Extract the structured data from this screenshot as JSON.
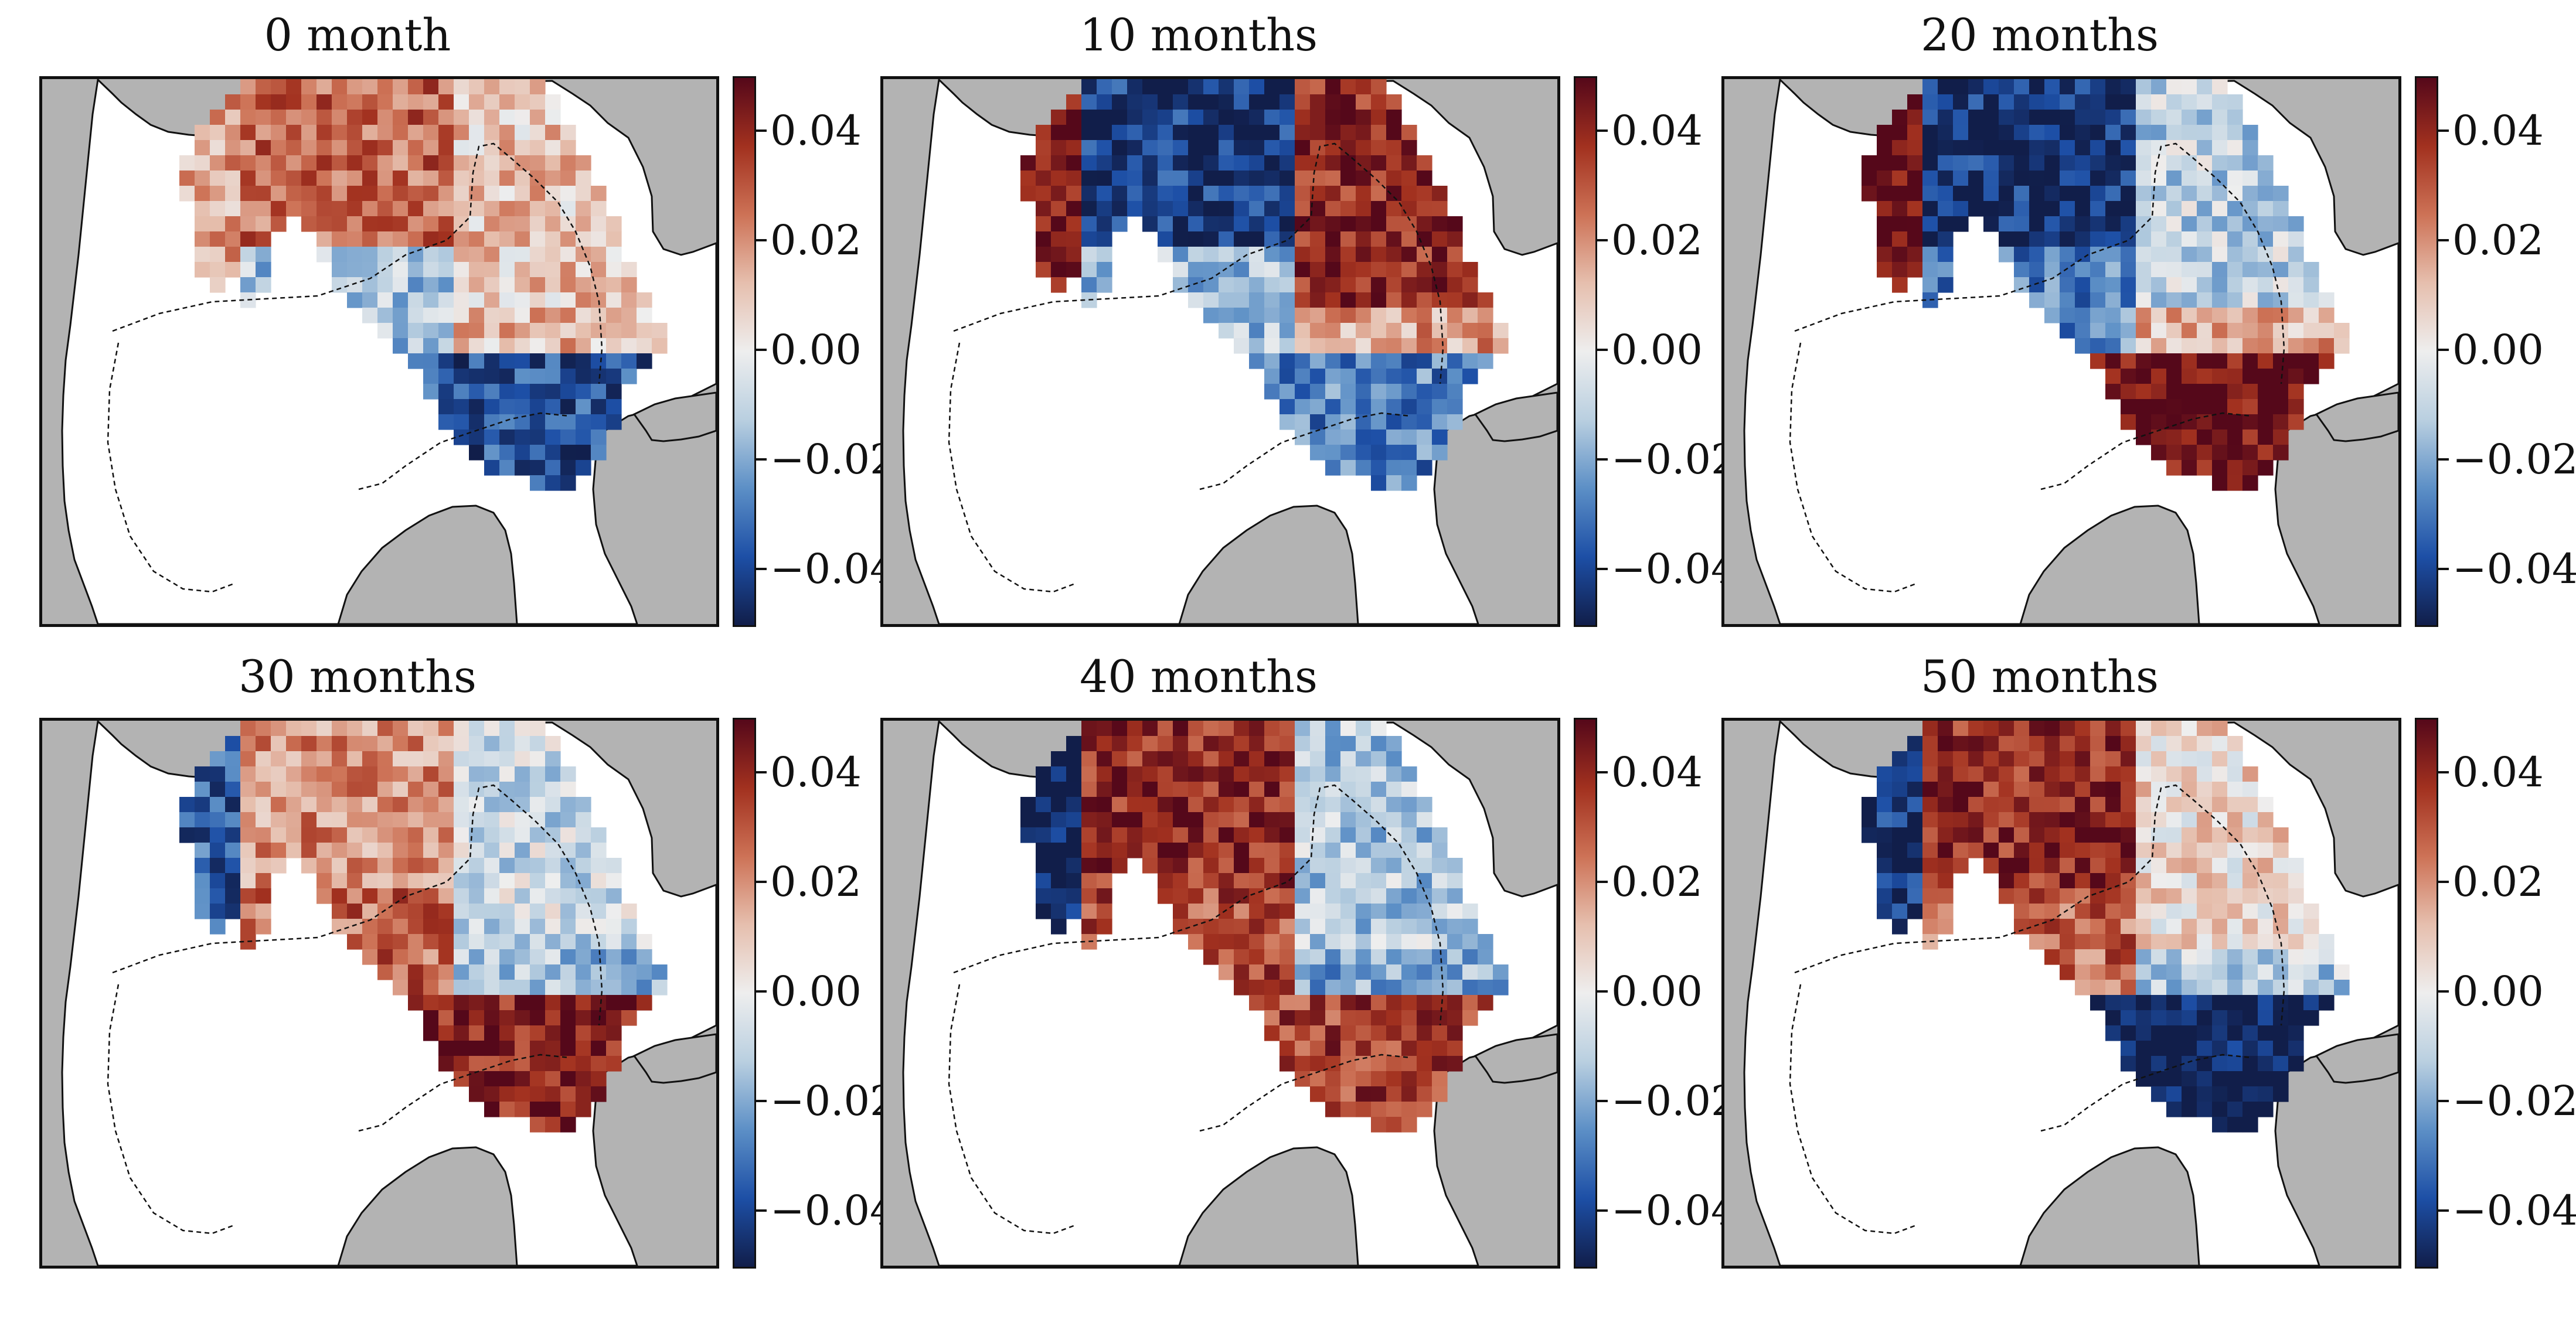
{
  "panels": [
    {
      "title": "0 month",
      "pattern": [
        0.35,
        -0.75,
        0.55,
        -0.3,
        0.2,
        0.25
      ]
    },
    {
      "title": "10 months",
      "pattern": [
        0.9,
        -0.55,
        -0.85,
        -0.3,
        0.8,
        0.35
      ]
    },
    {
      "title": "20 months",
      "pattern": [
        1.0,
        0.95,
        -0.9,
        -0.55,
        -0.2,
        0.3
      ]
    },
    {
      "title": "30 months",
      "pattern": [
        -0.7,
        0.85,
        0.4,
        0.55,
        -0.15,
        -0.3
      ]
    },
    {
      "title": "40 months",
      "pattern": [
        -1.0,
        0.7,
        0.8,
        0.65,
        -0.25,
        -0.4
      ]
    },
    {
      "title": "50 months",
      "pattern": [
        -0.9,
        -1.0,
        0.8,
        0.55,
        0.1,
        -0.25
      ]
    }
  ],
  "colorbar": {
    "min": -0.05,
    "max": 0.05,
    "ticks": [
      "0.04",
      "0.02",
      "0.00",
      "−0.02",
      "−0.04"
    ],
    "tick_values": [
      0.04,
      0.02,
      0.0,
      -0.02,
      -0.04
    ],
    "colors": [
      "#111e4a",
      "#1d4fa6",
      "#5c8fc6",
      "#b9cfe0",
      "#eeeeee",
      "#e6bfae",
      "#cd7256",
      "#a2311f",
      "#55081a"
    ]
  },
  "map_colors": {
    "land": "#b3b3b3",
    "ocean": "#ffffff"
  }
}
